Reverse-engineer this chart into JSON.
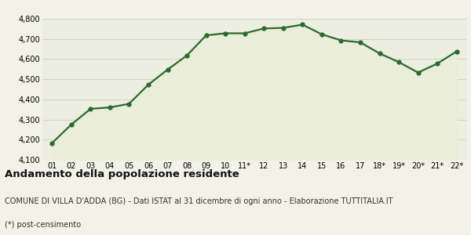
{
  "x_labels": [
    "01",
    "02",
    "03",
    "04",
    "05",
    "06",
    "07",
    "08",
    "09",
    "10",
    "11*",
    "12",
    "13",
    "14",
    "15",
    "16",
    "17",
    "18*",
    "19*",
    "20*",
    "21*",
    "22*"
  ],
  "y_values": [
    4183,
    4275,
    4353,
    4360,
    4378,
    4473,
    4548,
    4618,
    4718,
    4728,
    4728,
    4752,
    4755,
    4771,
    4723,
    4693,
    4683,
    4628,
    4585,
    4533,
    4578,
    4638
  ],
  "ylim": [
    4100,
    4800
  ],
  "yticks": [
    4100,
    4200,
    4300,
    4400,
    4500,
    4600,
    4700,
    4800
  ],
  "line_color": "#2d6a2d",
  "fill_color": "#eaedda",
  "marker": "o",
  "marker_size": 3.5,
  "linewidth": 1.6,
  "bg_color": "#f2f2e8",
  "plot_bg_color": "#eceee0",
  "grid_color": "#d0d0c0",
  "title": "Andamento della popolazione residente",
  "subtitle": "COMUNE DI VILLA D'ADDA (BG) - Dati ISTAT al 31 dicembre di ogni anno - Elaborazione TUTTITALIA.IT",
  "footnote": "(*) post-censimento",
  "title_fontsize": 9.5,
  "subtitle_fontsize": 7.0,
  "footnote_fontsize": 7.0,
  "tick_fontsize": 7.0
}
